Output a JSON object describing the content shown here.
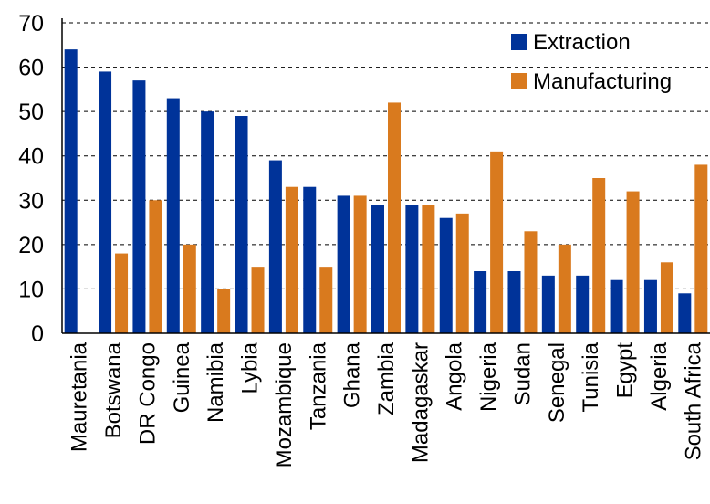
{
  "colors": {
    "extraction": "#003399",
    "manufacturing": "#D97A1E",
    "grid": "#000000",
    "axis": "#000000"
  },
  "chart_data": {
    "type": "bar",
    "title": "",
    "xlabel": "",
    "ylabel": "",
    "ylim": [
      0,
      70
    ],
    "yticks": [
      "0",
      "10",
      "20",
      "30",
      "40",
      "50",
      "60",
      "70"
    ],
    "grid": "horizontal dashed",
    "legend_position": "top-right",
    "categories": [
      "Mauretania",
      "Botswana",
      "DR Congo",
      "Guinea",
      "Namibia",
      "Lybia",
      "Mozambique",
      "Tanzania",
      "Ghana",
      "Zambia",
      "Madagaskar",
      "Angola",
      "Nigeria",
      "Sudan",
      "Senegal",
      "Tunisia",
      "Egypt",
      "Algeria",
      "South Africa"
    ],
    "series": [
      {
        "name": "Extraction",
        "values": [
          64,
          59,
          57,
          53,
          50,
          49,
          39,
          33,
          31,
          29,
          29,
          26,
          14,
          14,
          13,
          13,
          12,
          12,
          9
        ]
      },
      {
        "name": "Manufacturing",
        "values": [
          0,
          18,
          30,
          20,
          10,
          15,
          33,
          15,
          31,
          52,
          29,
          27,
          41,
          23,
          20,
          35,
          32,
          16,
          38
        ]
      }
    ]
  }
}
